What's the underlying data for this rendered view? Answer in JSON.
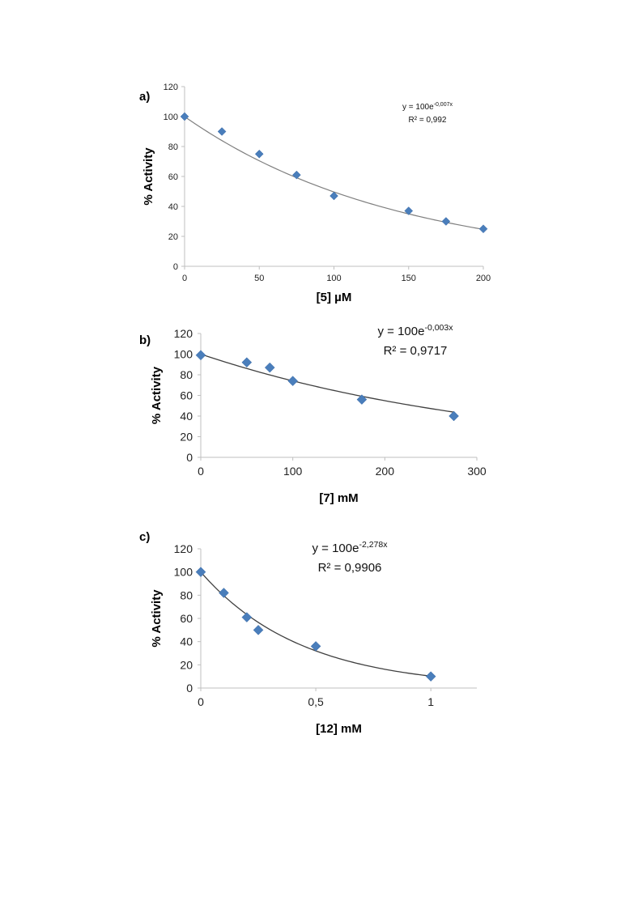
{
  "chart_data": [
    {
      "panel": "a)",
      "type": "scatter",
      "points": [
        {
          "x": 0,
          "y": 100
        },
        {
          "x": 25,
          "y": 90
        },
        {
          "x": 50,
          "y": 75
        },
        {
          "x": 75,
          "y": 61
        },
        {
          "x": 100,
          "y": 47
        },
        {
          "x": 150,
          "y": 37
        },
        {
          "x": 175,
          "y": 30
        },
        {
          "x": 200,
          "y": 25
        }
      ],
      "fit": {
        "type": "exponential",
        "a": 100,
        "b": -0.007,
        "equation_prefix": "y = 100e",
        "equation_exp": "-0,007x",
        "r2_text": "R² = 0,992"
      },
      "x_ticks": [
        0,
        50,
        100,
        150,
        200
      ],
      "x_tick_labels": [
        "0",
        "50",
        "100",
        "150",
        "200"
      ],
      "y_ticks": [
        0,
        20,
        40,
        60,
        80,
        100,
        120
      ],
      "y_tick_labels": [
        "0",
        "20",
        "40",
        "60",
        "80",
        "100",
        "120"
      ],
      "xlim": [
        0,
        200
      ],
      "ylim": [
        0,
        120
      ],
      "xlabel": "[5] µM",
      "ylabel": "% Activity",
      "grid": false,
      "marker_color": "#4a7ebb",
      "line_color": "#7f7f7f"
    },
    {
      "panel": "b)",
      "type": "scatter",
      "points": [
        {
          "x": 0,
          "y": 99
        },
        {
          "x": 50,
          "y": 92
        },
        {
          "x": 75,
          "y": 87
        },
        {
          "x": 100,
          "y": 74
        },
        {
          "x": 175,
          "y": 56
        },
        {
          "x": 275,
          "y": 40
        }
      ],
      "fit": {
        "type": "exponential",
        "a": 100,
        "b": -0.003,
        "equation_prefix": "y = 100e",
        "equation_exp": "-0,003x",
        "r2_text": "R² = 0,9717"
      },
      "x_ticks": [
        0,
        100,
        200,
        300
      ],
      "x_tick_labels": [
        "0",
        "100",
        "200",
        "300"
      ],
      "y_ticks": [
        0,
        20,
        40,
        60,
        80,
        100,
        120
      ],
      "y_tick_labels": [
        "0",
        "20",
        "40",
        "60",
        "80",
        "100",
        "120"
      ],
      "xlim": [
        0,
        300
      ],
      "ylim": [
        0,
        120
      ],
      "xlabel": "[7] mM",
      "ylabel": "% Activity",
      "grid": false,
      "marker_color": "#4a7ebb",
      "line_color": "#404040"
    },
    {
      "panel": "c)",
      "type": "scatter",
      "points": [
        {
          "x": 0,
          "y": 100
        },
        {
          "x": 0.1,
          "y": 82
        },
        {
          "x": 0.2,
          "y": 61
        },
        {
          "x": 0.25,
          "y": 50
        },
        {
          "x": 0.5,
          "y": 36
        },
        {
          "x": 1,
          "y": 10
        }
      ],
      "fit": {
        "type": "exponential",
        "a": 100,
        "b": -2.278,
        "equation_prefix": "y = 100e",
        "equation_exp": "-2,278x",
        "r2_text": "R² = 0,9906"
      },
      "x_ticks": [
        0,
        0.5,
        1
      ],
      "x_tick_labels": [
        "0",
        "0,5",
        "1"
      ],
      "y_ticks": [
        0,
        20,
        40,
        60,
        80,
        100,
        120
      ],
      "y_tick_labels": [
        "0",
        "20",
        "40",
        "60",
        "80",
        "100",
        "120"
      ],
      "xlim": [
        0,
        1.2
      ],
      "ylim": [
        0,
        120
      ],
      "xlabel": "[12] mM",
      "ylabel": "% Activity",
      "grid": false,
      "marker_color": "#4a7ebb",
      "line_color": "#404040"
    }
  ]
}
